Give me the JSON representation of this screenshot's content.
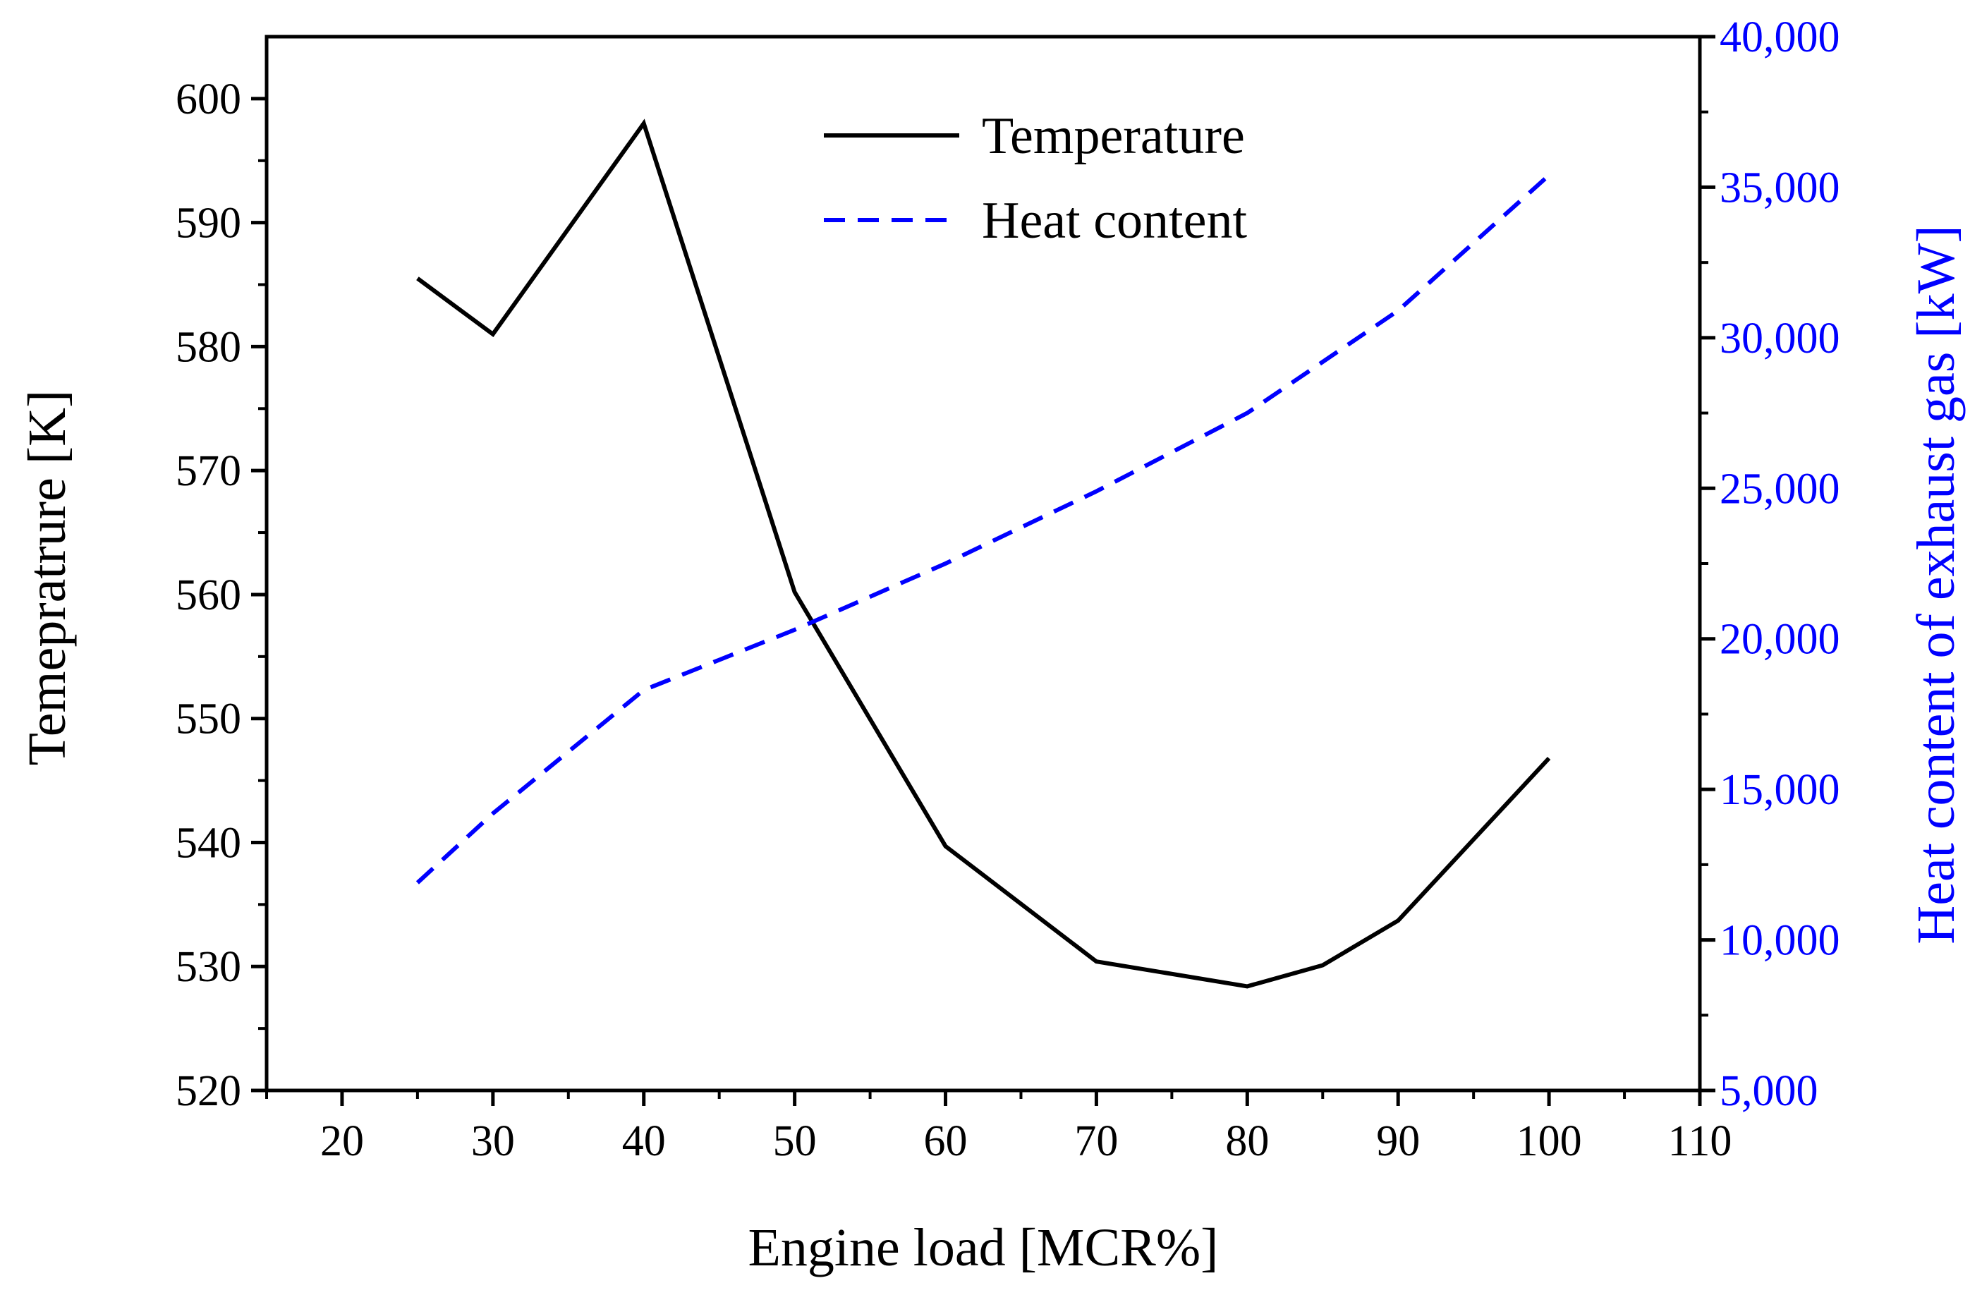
{
  "chart_data": {
    "type": "line",
    "title": "",
    "xlabel": "Engine load [MCR%]",
    "ylabel_left": "Temepratrure [K]",
    "ylabel_right": "Heat content  of exhaust gas [kW]",
    "xlim": [
      15,
      110
    ],
    "ylim_left": [
      520,
      605
    ],
    "ylim_right": [
      5000,
      40000
    ],
    "x_ticks": [
      20,
      30,
      40,
      50,
      60,
      70,
      80,
      90,
      100,
      110
    ],
    "x_tick_labels": [
      "20",
      "30",
      "40",
      "50",
      "60",
      "70",
      "80",
      "90",
      "100",
      "110"
    ],
    "y_left_ticks": [
      520,
      530,
      540,
      550,
      560,
      570,
      580,
      590,
      600
    ],
    "y_left_tick_labels": [
      "520",
      "530",
      "540",
      "550",
      "560",
      "570",
      "580",
      "590",
      "600"
    ],
    "y_right_ticks": [
      5000,
      10000,
      15000,
      20000,
      25000,
      30000,
      35000,
      40000
    ],
    "y_right_tick_labels": [
      "5,000",
      "10,000",
      "15,000",
      "20,000",
      "25,000",
      "30,000",
      "35,000",
      "40,000"
    ],
    "legend_position": "top-center",
    "series": [
      {
        "name": "Temperature",
        "axis": "left",
        "style": "solid",
        "color": "#000000",
        "x": [
          25,
          30,
          40,
          50,
          60,
          70,
          80,
          85,
          90,
          100
        ],
        "values": [
          585.5,
          581,
          598,
          560.2,
          539.7,
          530.4,
          528.4,
          530.1,
          533.7,
          546.8
        ]
      },
      {
        "name": "Heat content",
        "axis": "right",
        "style": "dashed",
        "color": "#0000ff",
        "x": [
          25,
          30,
          40,
          50,
          60,
          70,
          80,
          85,
          90,
          100
        ],
        "values": [
          11900,
          14200,
          18300,
          20300,
          22500,
          24900,
          27500,
          29200,
          30900,
          35400
        ]
      }
    ],
    "colors": {
      "left_axis": "#000000",
      "right_axis": "#0000ff"
    }
  }
}
